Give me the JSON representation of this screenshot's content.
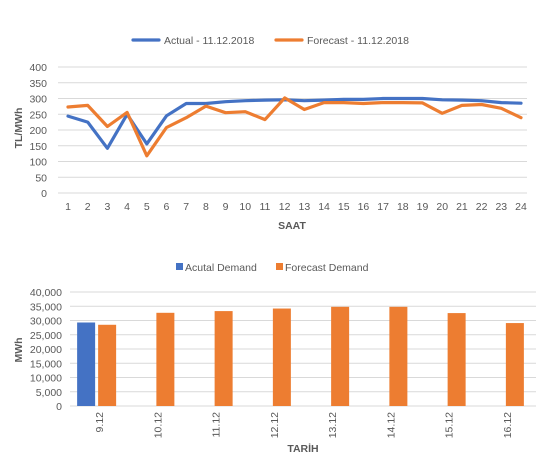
{
  "chart_data": [
    {
      "type": "line",
      "title": "",
      "xlabel": "SAAT",
      "ylabel": "TL/MWh",
      "ylim": [
        0,
        400
      ],
      "yticks": [
        0,
        50,
        100,
        150,
        200,
        250,
        300,
        350,
        400
      ],
      "grid": true,
      "legend": "top-center",
      "x": [
        "1",
        "2",
        "3",
        "4",
        "5",
        "6",
        "7",
        "8",
        "9",
        "10",
        "11",
        "12",
        "13",
        "14",
        "15",
        "16",
        "17",
        "18",
        "19",
        "20",
        "21",
        "22",
        "23",
        "24"
      ],
      "series": [
        {
          "name": "Actual - 11.12.2018",
          "color": "#4472c4",
          "values": [
            244,
            225,
            142,
            250,
            156,
            245,
            284,
            284,
            290,
            293,
            295,
            296,
            293,
            295,
            297,
            297,
            300,
            300,
            300,
            296,
            295,
            293,
            287,
            285
          ]
        },
        {
          "name": "Forecast - 11.12.2018",
          "color": "#ed7d31",
          "values": [
            273,
            278,
            211,
            256,
            118,
            208,
            239,
            276,
            255,
            258,
            233,
            302,
            265,
            287,
            287,
            284,
            287,
            287,
            286,
            253,
            278,
            281,
            269,
            239
          ]
        }
      ]
    },
    {
      "type": "bar",
      "title": "",
      "xlabel": "TARİH",
      "ylabel": "MWh",
      "ylim": [
        0,
        40000
      ],
      "yticks": [
        "0",
        "5,000",
        "10,000",
        "15,000",
        "20,000",
        "25,000",
        "30,000",
        "35,000",
        "40,000"
      ],
      "grid": true,
      "legend": "top-center",
      "categories": [
        "9.12",
        "10.12",
        "11.12",
        "12.12",
        "13.12",
        "14.12",
        "15.12",
        "16.12"
      ],
      "series": [
        {
          "name": "Acutal Demand",
          "color": "#4472c4",
          "values": [
            29300,
            null,
            null,
            null,
            null,
            null,
            null,
            null
          ]
        },
        {
          "name": "Forecast Demand",
          "color": "#ed7d31",
          "values": [
            28500,
            32700,
            33300,
            34200,
            34800,
            34800,
            32600,
            29100
          ]
        }
      ]
    }
  ]
}
